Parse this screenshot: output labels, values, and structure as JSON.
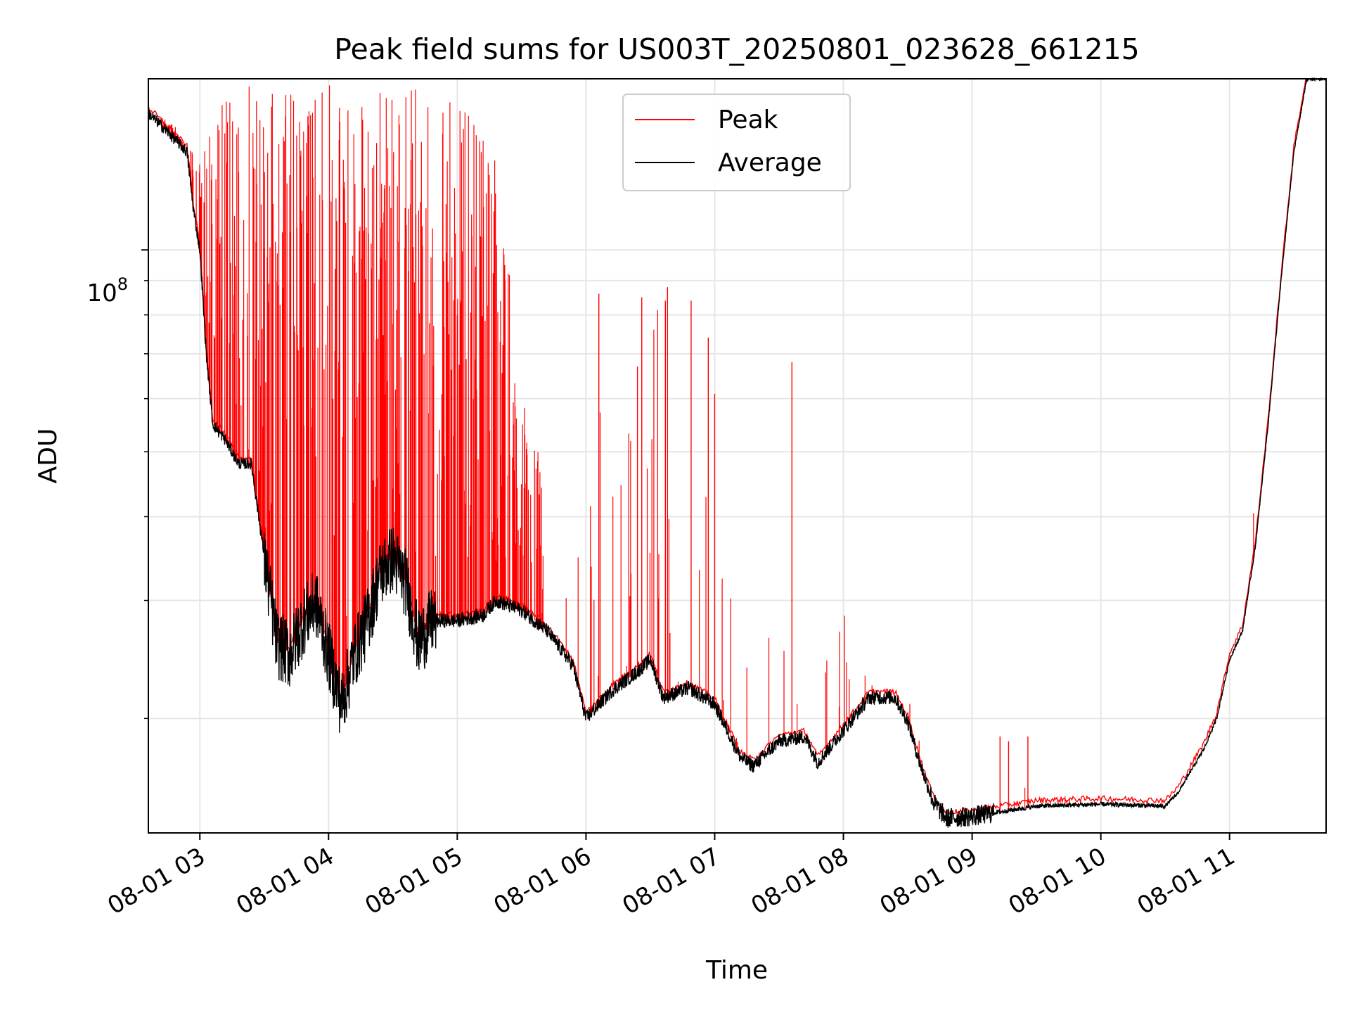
{
  "chart_data": {
    "type": "line",
    "title": "Peak field sums for US003T_20250801_023628_661215",
    "xlabel": "Time",
    "ylabel": "ADU",
    "y_scale": "log",
    "grid": true,
    "grid_minor": true,
    "legend_position": "upper center",
    "x_tick_labels": [
      "08-01 03",
      "08-01 04",
      "08-01 05",
      "08-01 06",
      "08-01 07",
      "08-01 08",
      "08-01 09",
      "08-01 10",
      "08-01 11"
    ],
    "x_ticks": [
      "2025-08-01 03:00",
      "2025-08-01 04:00",
      "2025-08-01 05:00",
      "2025-08-01 06:00",
      "2025-08-01 07:00",
      "2025-08-01 08:00",
      "2025-08-01 09:00",
      "2025-08-01 10:00",
      "2025-08-01 11:00"
    ],
    "y_tick_major": {
      "value": 100000000,
      "base": "10",
      "exponent": "8"
    },
    "y_tick_minor": [
      20000000,
      30000000,
      40000000,
      50000000,
      60000000,
      70000000,
      80000000,
      90000000,
      200000000
    ],
    "xlim": [
      "2025-08-01 02:36",
      "2025-08-01 11:45"
    ],
    "ylim": [
      13500000,
      180000000
    ],
    "series": [
      {
        "name": "Peak",
        "color": "#ff0000",
        "envelope_max": [
          [
            "2025-08-01 02:36",
            160000000
          ],
          [
            "2025-08-01 02:48",
            155000000
          ],
          [
            "2025-08-01 02:54",
            140000000
          ],
          [
            "2025-08-01 03:06",
            150000000
          ],
          [
            "2025-08-01 03:12",
            178000000
          ],
          [
            "2025-08-01 03:30",
            178000000
          ],
          [
            "2025-08-01 04:00",
            180000000
          ],
          [
            "2025-08-01 04:30",
            180000000
          ],
          [
            "2025-08-01 04:48",
            178000000
          ],
          [
            "2025-08-01 05:06",
            165000000
          ],
          [
            "2025-08-01 05:18",
            150000000
          ],
          [
            "2025-08-01 05:30",
            60000000
          ],
          [
            "2025-08-01 05:42",
            45000000
          ],
          [
            "2025-08-01 05:54",
            30000000
          ],
          [
            "2025-08-01 06:06",
            86000000
          ],
          [
            "2025-08-01 06:12",
            45000000
          ],
          [
            "2025-08-01 06:24",
            70000000
          ],
          [
            "2025-08-01 06:30",
            84000000
          ],
          [
            "2025-08-01 06:48",
            82000000
          ],
          [
            "2025-08-01 06:54",
            70000000
          ],
          [
            "2025-08-01 07:00",
            60000000
          ],
          [
            "2025-08-01 07:12",
            37000000
          ],
          [
            "2025-08-01 07:24",
            24000000
          ],
          [
            "2025-08-01 07:36",
            68000000
          ],
          [
            "2025-08-01 07:48",
            27000000
          ],
          [
            "2025-08-01 08:00",
            29000000
          ],
          [
            "2025-08-01 08:12",
            22500000
          ],
          [
            "2025-08-01 08:30",
            22000000
          ],
          [
            "2025-08-01 08:42",
            15500000
          ],
          [
            "2025-08-01 09:12",
            18800000
          ],
          [
            "2025-08-01 09:24",
            18800000
          ],
          [
            "2025-08-01 09:48",
            15300000
          ],
          [
            "2025-08-01 10:12",
            15200000
          ],
          [
            "2025-08-01 10:36",
            15500000
          ],
          [
            "2025-08-01 11:00",
            25000000
          ],
          [
            "2025-08-01 11:36",
            180000000
          ]
        ],
        "spikes": [
          [
            "2025-08-01 06:06",
            86000000
          ],
          [
            "2025-08-01 06:26",
            85000000
          ],
          [
            "2025-08-01 06:37",
            84000000
          ],
          [
            "2025-08-01 06:38",
            88000000
          ],
          [
            "2025-08-01 06:49",
            84000000
          ],
          [
            "2025-08-01 07:36",
            68000000
          ],
          [
            "2025-08-01 07:00",
            61000000
          ],
          [
            "2025-08-01 06:24",
            67000000
          ],
          [
            "2025-08-01 06:57",
            74000000
          ],
          [
            "2025-08-01 09:13",
            18800000
          ],
          [
            "2025-08-01 09:17",
            18500000
          ],
          [
            "2025-08-01 09:26",
            18800000
          ]
        ]
      },
      {
        "name": "Average",
        "color": "#000000",
        "points": [
          [
            "2025-08-01 02:36",
            160000000
          ],
          [
            "2025-08-01 02:45",
            150000000
          ],
          [
            "2025-08-01 02:54",
            140000000
          ],
          [
            "2025-08-01 02:57",
            115000000
          ],
          [
            "2025-08-01 03:00",
            100000000
          ],
          [
            "2025-08-01 03:03",
            70000000
          ],
          [
            "2025-08-01 03:06",
            55000000
          ],
          [
            "2025-08-01 03:12",
            52000000
          ],
          [
            "2025-08-01 03:18",
            48000000
          ],
          [
            "2025-08-01 03:24",
            48000000
          ],
          [
            "2025-08-01 03:30",
            35000000
          ],
          [
            "2025-08-01 03:36",
            26000000
          ],
          [
            "2025-08-01 03:42",
            25000000
          ],
          [
            "2025-08-01 03:48",
            28000000
          ],
          [
            "2025-08-01 03:54",
            30000000
          ],
          [
            "2025-08-01 04:06",
            21000000
          ],
          [
            "2025-08-01 04:12",
            25000000
          ],
          [
            "2025-08-01 04:18",
            28000000
          ],
          [
            "2025-08-01 04:24",
            33000000
          ],
          [
            "2025-08-01 04:30",
            35000000
          ],
          [
            "2025-08-01 04:36",
            32000000
          ],
          [
            "2025-08-01 04:42",
            26000000
          ],
          [
            "2025-08-01 04:48",
            28000000
          ],
          [
            "2025-08-01 05:00",
            28000000
          ],
          [
            "2025-08-01 05:12",
            28500000
          ],
          [
            "2025-08-01 05:18",
            30000000
          ],
          [
            "2025-08-01 05:30",
            29000000
          ],
          [
            "2025-08-01 05:42",
            27000000
          ],
          [
            "2025-08-01 05:54",
            24000000
          ],
          [
            "2025-08-01 06:00",
            20000000
          ],
          [
            "2025-08-01 06:12",
            22000000
          ],
          [
            "2025-08-01 06:24",
            23500000
          ],
          [
            "2025-08-01 06:30",
            24500000
          ],
          [
            "2025-08-01 06:36",
            21500000
          ],
          [
            "2025-08-01 06:48",
            22200000
          ],
          [
            "2025-08-01 07:00",
            21000000
          ],
          [
            "2025-08-01 07:12",
            17500000
          ],
          [
            "2025-08-01 07:18",
            17000000
          ],
          [
            "2025-08-01 07:30",
            18500000
          ],
          [
            "2025-08-01 07:42",
            18800000
          ],
          [
            "2025-08-01 07:48",
            17200000
          ],
          [
            "2025-08-01 08:00",
            19200000
          ],
          [
            "2025-08-01 08:12",
            21500000
          ],
          [
            "2025-08-01 08:24",
            21500000
          ],
          [
            "2025-08-01 08:30",
            19800000
          ],
          [
            "2025-08-01 08:36",
            17000000
          ],
          [
            "2025-08-01 08:42",
            15000000
          ],
          [
            "2025-08-01 08:48",
            14200000
          ],
          [
            "2025-08-01 09:00",
            14300000
          ],
          [
            "2025-08-01 09:30",
            14800000
          ],
          [
            "2025-08-01 10:00",
            14900000
          ],
          [
            "2025-08-01 10:30",
            14800000
          ],
          [
            "2025-08-01 10:36",
            15500000
          ],
          [
            "2025-08-01 10:48",
            18000000
          ],
          [
            "2025-08-01 10:54",
            20000000
          ],
          [
            "2025-08-01 11:00",
            24500000
          ],
          [
            "2025-08-01 11:06",
            27000000
          ],
          [
            "2025-08-01 11:12",
            36000000
          ],
          [
            "2025-08-01 11:18",
            55000000
          ],
          [
            "2025-08-01 11:24",
            90000000
          ],
          [
            "2025-08-01 11:30",
            140000000
          ],
          [
            "2025-08-01 11:36",
            180000000
          ],
          [
            "2025-08-01 11:45",
            180000000
          ]
        ]
      }
    ]
  }
}
